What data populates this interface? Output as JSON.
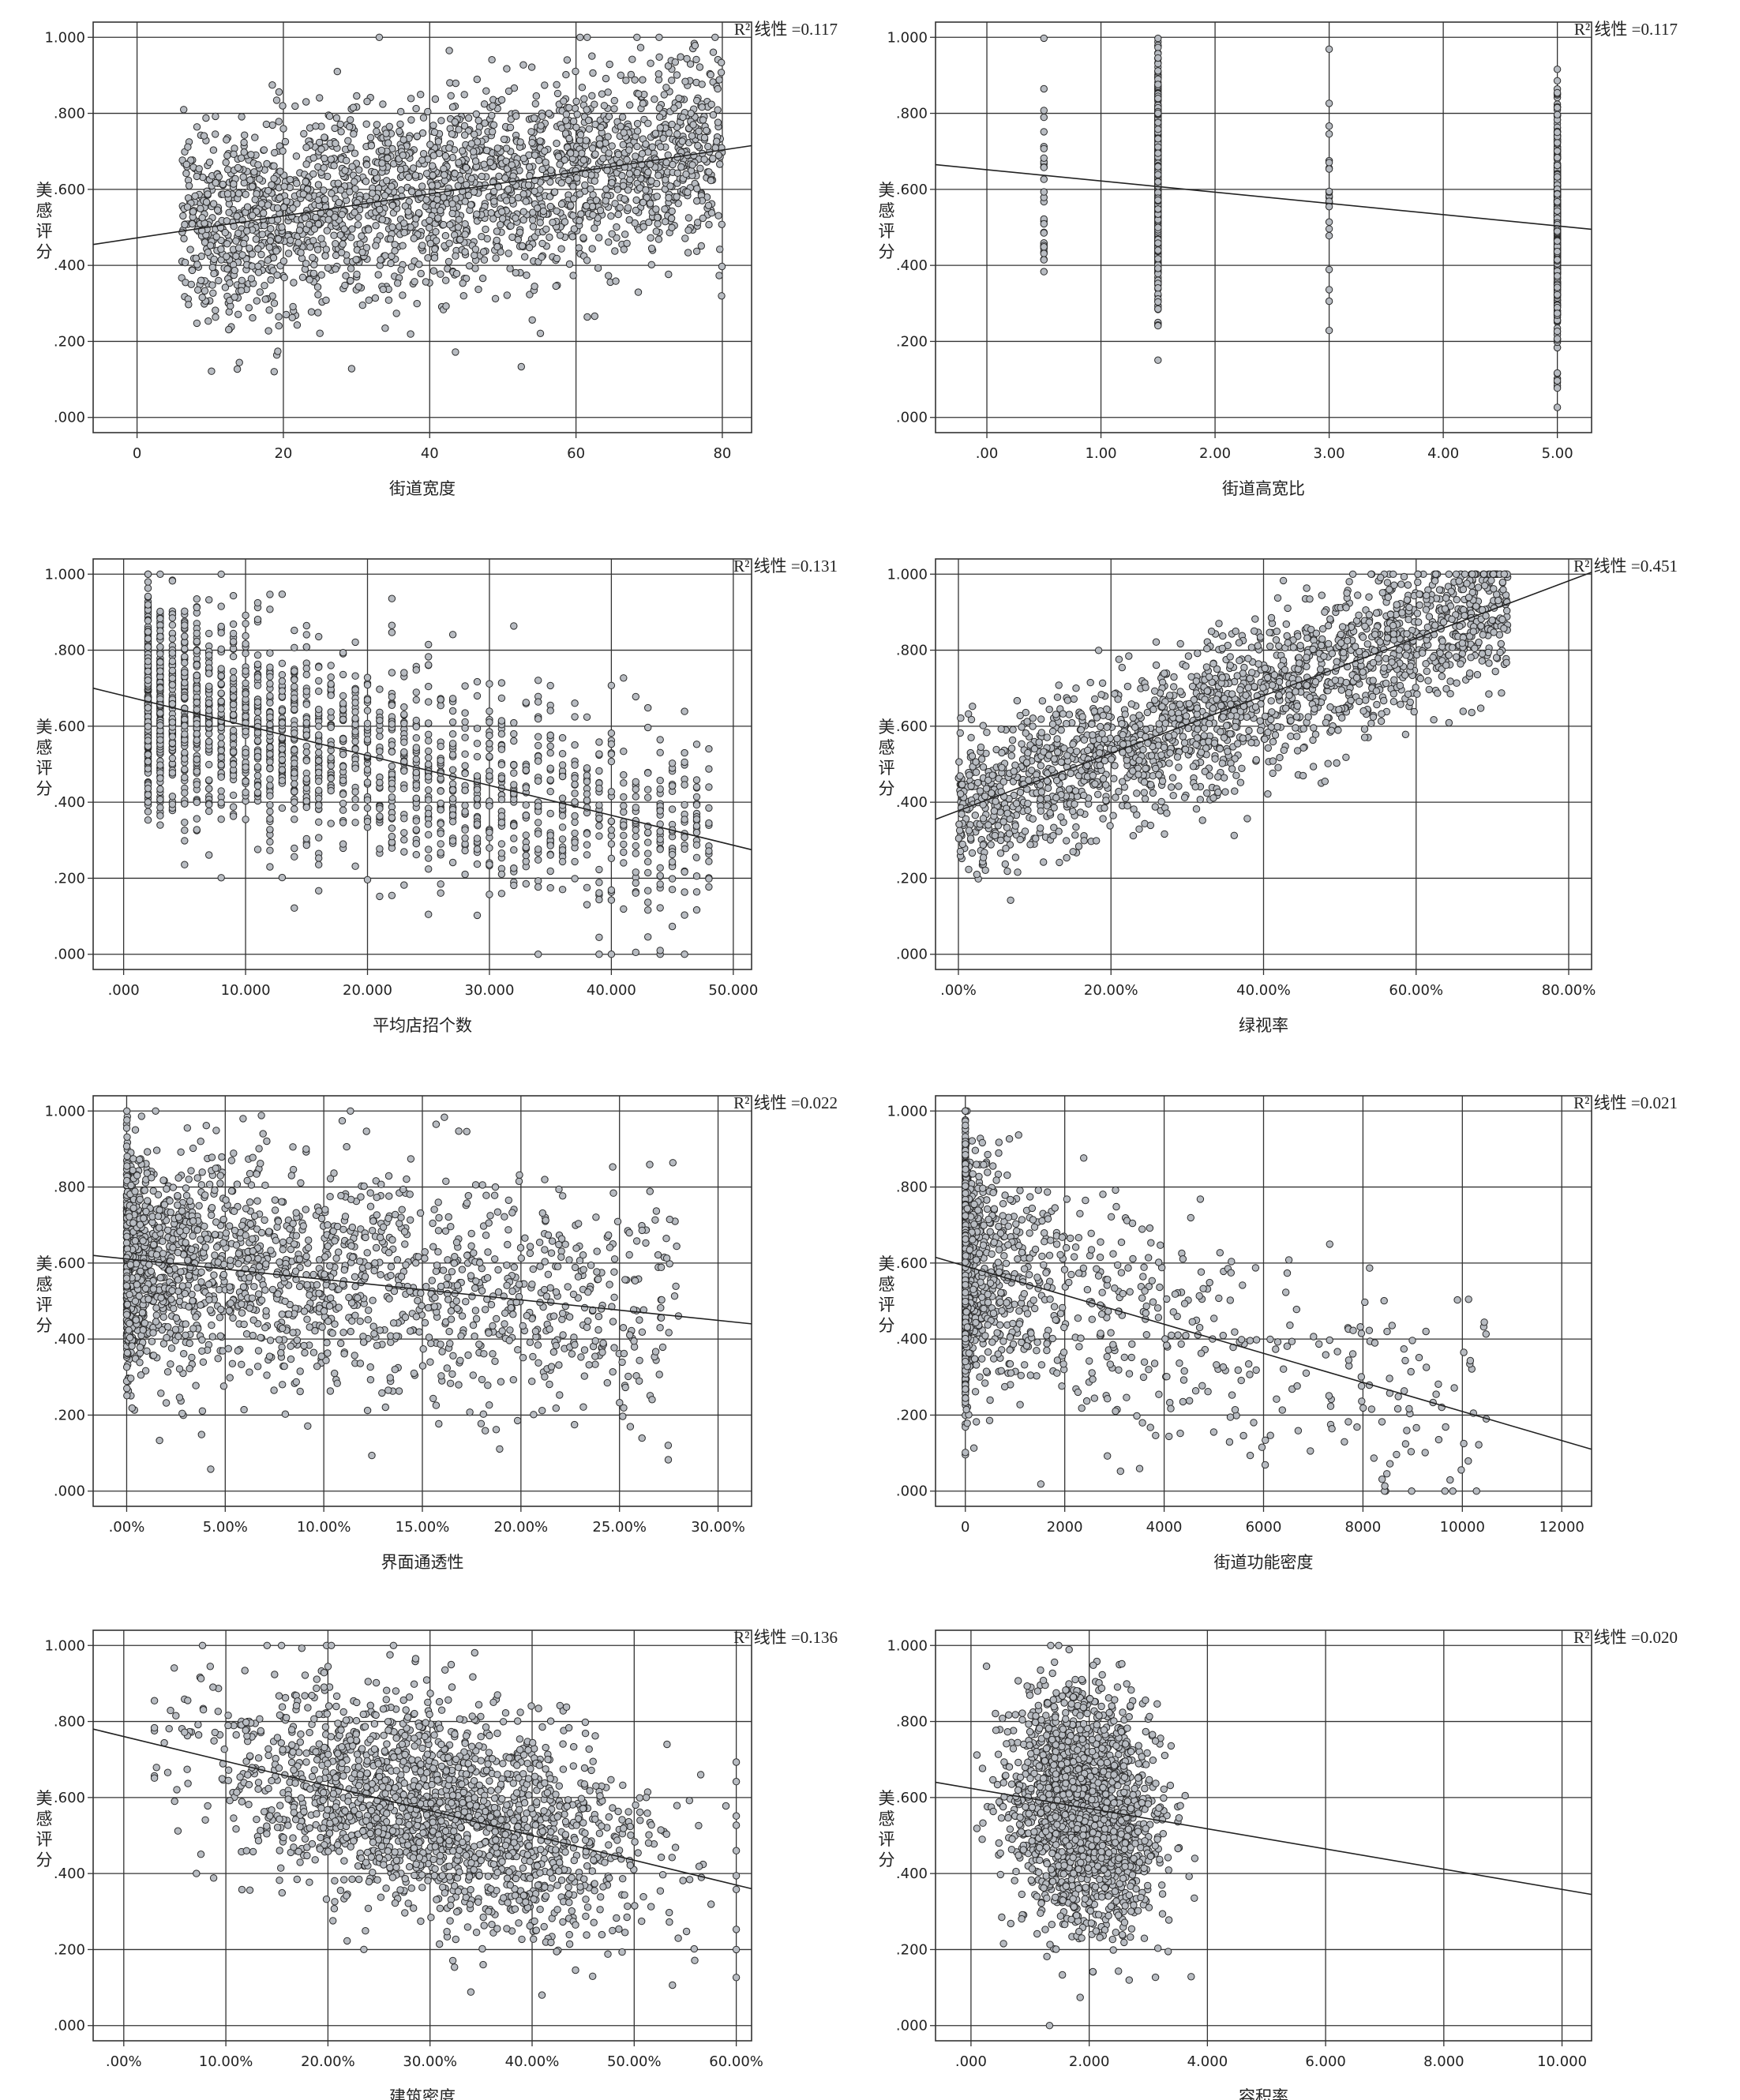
{
  "y_label": "美感评分",
  "chart_data": [
    {
      "type": "scatter",
      "xlabel": "街道宽度",
      "ylabel": "美感评分",
      "r2_label": "R² 线性 =0.117",
      "xlim": [
        -6,
        84
      ],
      "ylim": [
        -0.04,
        1.04
      ],
      "x_ticks": [
        "0",
        "20",
        "40",
        "60",
        "80"
      ],
      "x_tick_values": [
        0,
        20,
        40,
        60,
        80
      ],
      "y_ticks": [
        ".000",
        ".200",
        ".400",
        ".600",
        ".800",
        "1.000"
      ],
      "y_tick_values": [
        0,
        0.2,
        0.4,
        0.6,
        0.8,
        1.0
      ],
      "fit_line": {
        "x": [
          -6,
          84
        ],
        "y": [
          0.455,
          0.715
        ]
      },
      "sample": {
        "n": 2300,
        "mode": "uniform",
        "x_range": [
          6,
          80
        ],
        "noise": 0.13,
        "seed": 11
      }
    },
    {
      "type": "scatter",
      "xlabel": "街道高宽比",
      "ylabel": "美感评分",
      "r2_label": "R² 线性 =0.117",
      "xlim": [
        -0.45,
        5.3
      ],
      "ylim": [
        -0.04,
        1.04
      ],
      "x_ticks": [
        ".00",
        "1.00",
        "2.00",
        "3.00",
        "4.00",
        "5.00"
      ],
      "x_tick_values": [
        0,
        1,
        2,
        3,
        4,
        5
      ],
      "y_ticks": [
        ".000",
        ".200",
        ".400",
        ".600",
        ".800",
        "1.000"
      ],
      "y_tick_values": [
        0,
        0.2,
        0.4,
        0.6,
        0.8,
        1.0
      ],
      "fit_line": {
        "x": [
          -0.45,
          5.3
        ],
        "y": [
          0.665,
          0.495
        ]
      },
      "sample": {
        "n": 1400,
        "mode": "discrete",
        "levels": [
          0.5,
          1.5,
          3.0,
          5.0
        ],
        "level_weights": [
          0.02,
          0.55,
          0.015,
          0.415
        ],
        "noise": 0.14,
        "seed": 23
      }
    },
    {
      "type": "scatter",
      "xlabel": "平均店招个数",
      "ylabel": "美感评分",
      "r2_label": "R² 线性 =0.131",
      "xlim": [
        -2.5,
        51.5
      ],
      "ylim": [
        -0.04,
        1.04
      ],
      "x_ticks": [
        ".000",
        "10.000",
        "20.000",
        "30.000",
        "40.000",
        "50.000"
      ],
      "x_tick_values": [
        0,
        10,
        20,
        30,
        40,
        50
      ],
      "y_ticks": [
        ".000",
        ".200",
        ".400",
        ".600",
        ".800",
        "1.000"
      ],
      "y_tick_values": [
        0,
        0.2,
        0.4,
        0.6,
        0.8,
        1.0
      ],
      "fit_line": {
        "x": [
          -2.5,
          51.5
        ],
        "y": [
          0.7,
          0.275
        ]
      },
      "sample": {
        "n": 2000,
        "mode": "skew",
        "x_range": [
          2,
          48
        ],
        "skew": 2.1,
        "grid_step": 1.0,
        "noise": 0.14,
        "seed": 37
      }
    },
    {
      "type": "scatter",
      "xlabel": "绿视率",
      "ylabel": "美感评分",
      "r2_label": "R² 线性 =0.451",
      "xlim": [
        -0.03,
        0.83
      ],
      "ylim": [
        -0.04,
        1.04
      ],
      "x_ticks": [
        ".00%",
        "20.00%",
        "40.00%",
        "60.00%",
        "80.00%"
      ],
      "x_tick_values": [
        0,
        0.2,
        0.4,
        0.6,
        0.8
      ],
      "y_ticks": [
        ".000",
        ".200",
        ".400",
        ".600",
        ".800",
        "1.000"
      ],
      "y_tick_values": [
        0,
        0.2,
        0.4,
        0.6,
        0.8,
        1.0
      ],
      "fit_line": {
        "x": [
          -0.03,
          0.83
        ],
        "y": [
          0.355,
          1.005
        ]
      },
      "sample": {
        "n": 2000,
        "mode": "skew",
        "x_range": [
          0.0,
          0.72
        ],
        "skew": 1.0,
        "noise": 0.1,
        "seed": 53
      }
    },
    {
      "type": "scatter",
      "xlabel": "界面通透性",
      "ylabel": "美感评分",
      "r2_label": "R² 线性 =0.022",
      "xlim": [
        -0.017,
        0.317
      ],
      "ylim": [
        -0.04,
        1.04
      ],
      "x_ticks": [
        ".00%",
        "5.00%",
        "10.00%",
        "15.00%",
        "20.00%",
        "25.00%",
        "30.00%"
      ],
      "x_tick_values": [
        0,
        0.05,
        0.1,
        0.15,
        0.2,
        0.25,
        0.3
      ],
      "y_ticks": [
        ".000",
        ".200",
        ".400",
        ".600",
        ".800",
        "1.000"
      ],
      "y_tick_values": [
        0,
        0.2,
        0.4,
        0.6,
        0.8,
        1.0
      ],
      "fit_line": {
        "x": [
          -0.017,
          0.317
        ],
        "y": [
          0.62,
          0.44
        ]
      },
      "sample": {
        "n": 2000,
        "mode": "skew",
        "x_range": [
          0.0,
          0.28
        ],
        "skew": 2.4,
        "noise": 0.15,
        "seed": 71
      }
    },
    {
      "type": "scatter",
      "xlabel": "街道功能密度",
      "ylabel": "美感评分",
      "r2_label": "R² 线性 =0.021",
      "xlim": [
        -600,
        12600
      ],
      "ylim": [
        -0.04,
        1.04
      ],
      "x_ticks": [
        "0",
        "2000",
        "4000",
        "6000",
        "8000",
        "10000",
        "12000"
      ],
      "x_tick_values": [
        0,
        2000,
        4000,
        6000,
        8000,
        10000,
        12000
      ],
      "y_ticks": [
        ".000",
        ".200",
        ".400",
        ".600",
        ".800",
        "1.000"
      ],
      "y_tick_values": [
        0,
        0.2,
        0.4,
        0.6,
        0.8,
        1.0
      ],
      "fit_line": {
        "x": [
          -600,
          12600
        ],
        "y": [
          0.615,
          0.11
        ]
      },
      "sample": {
        "n": 2000,
        "mode": "skew",
        "x_range": [
          0,
          10500
        ],
        "skew": 9.0,
        "noise": 0.15,
        "seed": 89
      }
    },
    {
      "type": "scatter",
      "xlabel": "建筑密度",
      "ylabel": "美感评分",
      "r2_label": "R² 线性 =0.136",
      "xlim": [
        -0.03,
        0.615
      ],
      "ylim": [
        -0.04,
        1.04
      ],
      "x_ticks": [
        ".00%",
        "10.00%",
        "20.00%",
        "30.00%",
        "40.00%",
        "50.00%",
        "60.00%"
      ],
      "x_tick_values": [
        0,
        0.1,
        0.2,
        0.3,
        0.4,
        0.5,
        0.6
      ],
      "y_ticks": [
        ".000",
        ".200",
        ".400",
        ".600",
        ".800",
        "1.000"
      ],
      "y_tick_values": [
        0,
        0.2,
        0.4,
        0.6,
        0.8,
        1.0
      ],
      "fit_line": {
        "x": [
          -0.03,
          0.615
        ],
        "y": [
          0.78,
          0.36
        ]
      },
      "sample": {
        "n": 2000,
        "mode": "normal",
        "x_center": 0.31,
        "x_spread": 0.105,
        "x_range": [
          0.03,
          0.6
        ],
        "noise": 0.14,
        "seed": 97
      }
    },
    {
      "type": "scatter",
      "xlabel": "容积率",
      "ylabel": "美感评分",
      "r2_label": "R² 线性 =0.020",
      "xlim": [
        -0.6,
        10.5
      ],
      "ylim": [
        -0.04,
        1.04
      ],
      "x_ticks": [
        ".000",
        "2.000",
        "4.000",
        "6.000",
        "8.000",
        "10.000"
      ],
      "x_tick_values": [
        0,
        2,
        4,
        6,
        8,
        10
      ],
      "y_ticks": [
        ".000",
        ".200",
        ".400",
        ".600",
        ".800",
        "1.000"
      ],
      "y_tick_values": [
        0,
        0.2,
        0.4,
        0.6,
        0.8,
        1.0
      ],
      "fit_line": {
        "x": [
          -0.6,
          10.5
        ],
        "y": [
          0.64,
          0.345
        ]
      },
      "sample": {
        "n": 2000,
        "mode": "normal",
        "x_center": 1.9,
        "x_spread": 0.6,
        "x_range": [
          0.1,
          9.2
        ],
        "noise": 0.15,
        "seed": 113
      }
    }
  ]
}
